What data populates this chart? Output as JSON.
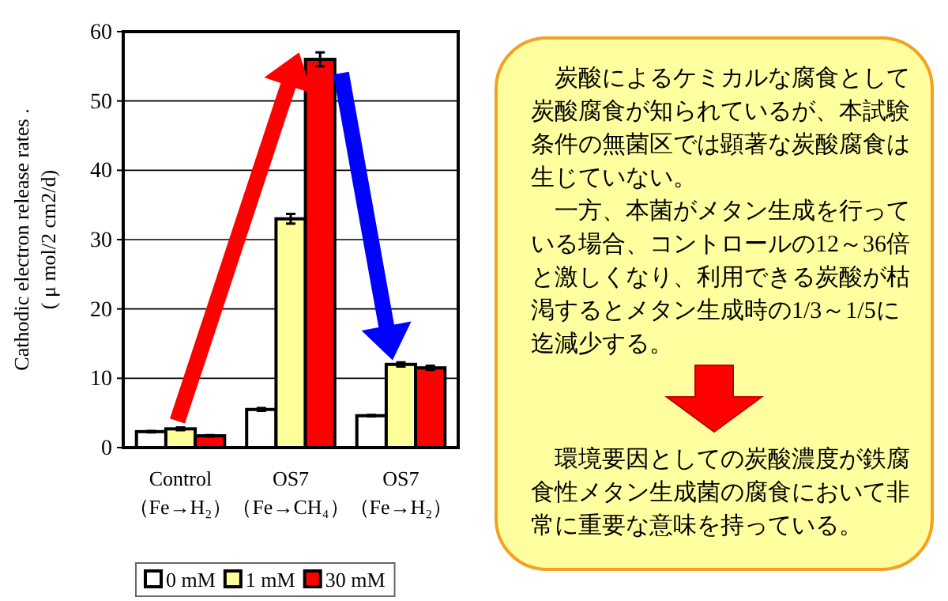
{
  "chart_data": [
    {
      "type": "bar",
      "ylabel": "Cathodic electron release rates .\n( μ mol/2 cm2/d)",
      "categories": [
        "Control\n（Fe→H₂）",
        "OS7\n（Fe→CH₄）",
        "OS7\n（Fe→H₂）"
      ],
      "series": [
        {
          "name": "0 mM",
          "color": "#ffffff",
          "values": [
            2.3,
            5.5,
            4.6
          ],
          "errors": [
            0.1,
            0.2,
            0.1
          ]
        },
        {
          "name": "1 mM",
          "color": "#ffff99",
          "values": [
            2.7,
            33.0,
            12.0
          ],
          "errors": [
            0.2,
            0.7,
            0.3
          ]
        },
        {
          "name": "30 mM",
          "color": "#ff0000",
          "values": [
            1.7,
            56.0,
            11.5
          ],
          "errors": [
            0.1,
            1.0,
            0.3
          ]
        }
      ],
      "ylim": [
        0,
        60
      ],
      "yticks": [
        0,
        10,
        20,
        30,
        40,
        50,
        60
      ],
      "grid": "y",
      "legend": "bottom"
    },
    {
      "type": "other",
      "annotations": [
        "　炭酸によるケミカルな腐食として炭酸腐食が知られているが、本試験条件の無菌区では顕著な炭酸腐食は生じていない。",
        "　一方、本菌がメタン生成を行っている場合、コントロールの12～36倍と激しくなり、利用できる炭酸が枯渇するとメタン生成時の1/3～1/5に迄減少する。",
        "　環境要因としての炭酸濃度が鉄腐食性メタン生成菌の腐食において非常に重要な意味を持っている。"
      ]
    }
  ]
}
